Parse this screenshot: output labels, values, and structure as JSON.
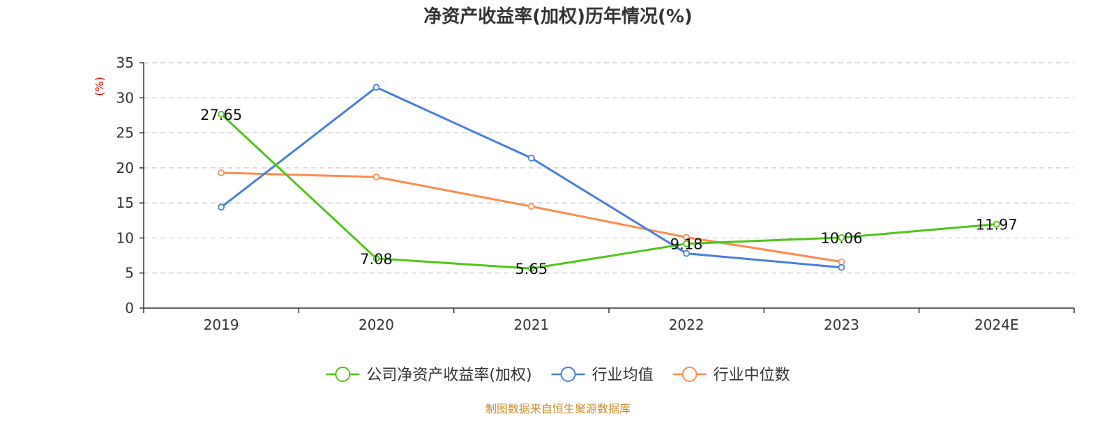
{
  "chart_data": {
    "type": "line",
    "title": "净资产收益率(加权)历年情况(%)",
    "ylabel": "(%)",
    "categories": [
      "2019",
      "2020",
      "2021",
      "2022",
      "2023",
      "2024E"
    ],
    "ylim": [
      0,
      35
    ],
    "yticks": [
      0,
      5,
      10,
      15,
      20,
      25,
      30,
      35
    ],
    "grid": true,
    "legend_position": "bottom",
    "series": [
      {
        "name": "公司净资产收益率(加权)",
        "color": "#52c41a",
        "values": [
          27.65,
          7.08,
          5.65,
          9.18,
          10.06,
          11.97
        ],
        "labels": [
          "27.65",
          "7.08",
          "5.65",
          "9.18",
          "10.06",
          "11.97"
        ]
      },
      {
        "name": "行业均值",
        "color": "#4a7fdc",
        "values": [
          14.4,
          31.5,
          21.4,
          7.8,
          5.8,
          null
        ]
      },
      {
        "name": "行业中位数",
        "color": "#ff8c50",
        "values": [
          19.3,
          18.7,
          14.5,
          10.1,
          6.6,
          null
        ]
      }
    ]
  },
  "source": "制图数据来自恒生聚源数据库"
}
